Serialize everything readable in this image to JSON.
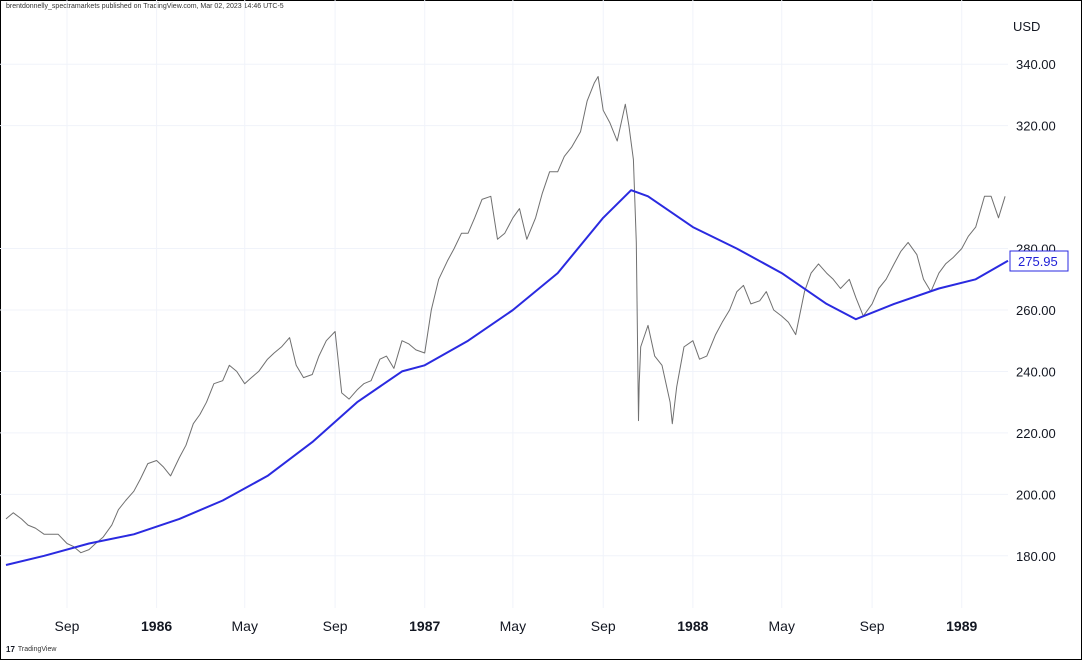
{
  "header": {
    "publish_note": "brentdonnelly_spectramarkets published on TradingView.com, Mar 02, 2023 14:46 UTC-5"
  },
  "footer": {
    "brand": "TradingView"
  },
  "colors": {
    "price_line": "#707070",
    "moving_average": "#2a2ae0",
    "last_value_border": "#2a2ae0",
    "last_value_text": "#1f1fd6",
    "grid": "#f0f3fa"
  },
  "chart_data": {
    "type": "line",
    "currency_label": "USD",
    "ylim": [
      163,
      357
    ],
    "xlim": [
      "1985-06-10",
      "1989-03-05"
    ],
    "y_ticks": [
      "180.00",
      "200.00",
      "220.00",
      "240.00",
      "260.00",
      "280.00",
      "320.00",
      "340.00"
    ],
    "x_ticks": [
      {
        "label": "Sep",
        "date": "1985-09-01",
        "bold": false
      },
      {
        "label": "1986",
        "date": "1986-01-01",
        "bold": true
      },
      {
        "label": "May",
        "date": "1986-05-01",
        "bold": false
      },
      {
        "label": "Sep",
        "date": "1986-09-01",
        "bold": false
      },
      {
        "label": "1987",
        "date": "1987-01-01",
        "bold": true
      },
      {
        "label": "May",
        "date": "1987-05-01",
        "bold": false
      },
      {
        "label": "Sep",
        "date": "1987-09-01",
        "bold": false
      },
      {
        "label": "1988",
        "date": "1988-01-01",
        "bold": true
      },
      {
        "label": "May",
        "date": "1988-05-01",
        "bold": false
      },
      {
        "label": "Sep",
        "date": "1988-09-01",
        "bold": false
      },
      {
        "label": "1989",
        "date": "1989-01-01",
        "bold": true
      }
    ],
    "last_value": "275.95",
    "series": [
      {
        "role": "price",
        "points": [
          [
            "1985-06-10",
            192
          ],
          [
            "1985-06-20",
            194
          ],
          [
            "1985-07-01",
            192
          ],
          [
            "1985-07-10",
            190
          ],
          [
            "1985-07-20",
            189
          ],
          [
            "1985-08-01",
            187
          ],
          [
            "1985-08-10",
            187
          ],
          [
            "1985-08-20",
            187
          ],
          [
            "1985-09-01",
            184
          ],
          [
            "1985-09-10",
            183
          ],
          [
            "1985-09-20",
            181
          ],
          [
            "1985-10-01",
            182
          ],
          [
            "1985-10-10",
            184
          ],
          [
            "1985-10-20",
            186
          ],
          [
            "1985-11-01",
            190
          ],
          [
            "1985-11-10",
            195
          ],
          [
            "1985-11-20",
            198
          ],
          [
            "1985-12-01",
            201
          ],
          [
            "1985-12-10",
            205
          ],
          [
            "1985-12-20",
            210
          ],
          [
            "1986-01-01",
            211
          ],
          [
            "1986-01-10",
            209
          ],
          [
            "1986-01-20",
            206
          ],
          [
            "1986-02-01",
            212
          ],
          [
            "1986-02-10",
            216
          ],
          [
            "1986-02-20",
            223
          ],
          [
            "1986-03-01",
            226
          ],
          [
            "1986-03-10",
            230
          ],
          [
            "1986-03-20",
            236
          ],
          [
            "1986-04-01",
            237
          ],
          [
            "1986-04-10",
            242
          ],
          [
            "1986-04-20",
            240
          ],
          [
            "1986-05-01",
            236
          ],
          [
            "1986-05-10",
            238
          ],
          [
            "1986-05-20",
            240
          ],
          [
            "1986-06-01",
            244
          ],
          [
            "1986-06-10",
            246
          ],
          [
            "1986-06-20",
            248
          ],
          [
            "1986-07-01",
            251
          ],
          [
            "1986-07-10",
            242
          ],
          [
            "1986-07-20",
            238
          ],
          [
            "1986-08-01",
            239
          ],
          [
            "1986-08-10",
            245
          ],
          [
            "1986-08-20",
            250
          ],
          [
            "1986-09-01",
            253
          ],
          [
            "1986-09-10",
            233
          ],
          [
            "1986-09-20",
            231
          ],
          [
            "1986-10-01",
            234
          ],
          [
            "1986-10-10",
            236
          ],
          [
            "1986-10-20",
            237
          ],
          [
            "1986-11-01",
            244
          ],
          [
            "1986-11-10",
            245
          ],
          [
            "1986-11-20",
            241
          ],
          [
            "1986-12-01",
            250
          ],
          [
            "1986-12-10",
            249
          ],
          [
            "1986-12-20",
            247
          ],
          [
            "1987-01-01",
            246
          ],
          [
            "1987-01-10",
            260
          ],
          [
            "1987-01-20",
            270
          ],
          [
            "1987-02-01",
            276
          ],
          [
            "1987-02-10",
            280
          ],
          [
            "1987-02-20",
            285
          ],
          [
            "1987-03-01",
            285
          ],
          [
            "1987-03-10",
            290
          ],
          [
            "1987-03-20",
            296
          ],
          [
            "1987-04-01",
            297
          ],
          [
            "1987-04-10",
            283
          ],
          [
            "1987-04-20",
            285
          ],
          [
            "1987-05-01",
            290
          ],
          [
            "1987-05-10",
            293
          ],
          [
            "1987-05-20",
            283
          ],
          [
            "1987-06-01",
            290
          ],
          [
            "1987-06-10",
            298
          ],
          [
            "1987-06-20",
            305
          ],
          [
            "1987-07-01",
            305
          ],
          [
            "1987-07-10",
            310
          ],
          [
            "1987-07-20",
            313
          ],
          [
            "1987-08-01",
            318
          ],
          [
            "1987-08-10",
            328
          ],
          [
            "1987-08-20",
            334
          ],
          [
            "1987-08-25",
            336
          ],
          [
            "1987-09-01",
            325
          ],
          [
            "1987-09-10",
            321
          ],
          [
            "1987-09-20",
            315
          ],
          [
            "1987-10-01",
            327
          ],
          [
            "1987-10-06",
            320
          ],
          [
            "1987-10-12",
            309
          ],
          [
            "1987-10-16",
            282
          ],
          [
            "1987-10-19",
            224
          ],
          [
            "1987-10-20",
            236
          ],
          [
            "1987-10-22",
            248
          ],
          [
            "1987-11-01",
            255
          ],
          [
            "1987-11-10",
            245
          ],
          [
            "1987-11-20",
            242
          ],
          [
            "1987-12-01",
            230
          ],
          [
            "1987-12-04",
            223
          ],
          [
            "1987-12-10",
            235
          ],
          [
            "1987-12-20",
            248
          ],
          [
            "1988-01-01",
            250
          ],
          [
            "1988-01-10",
            244
          ],
          [
            "1988-01-20",
            245
          ],
          [
            "1988-02-01",
            252
          ],
          [
            "1988-02-10",
            256
          ],
          [
            "1988-02-20",
            260
          ],
          [
            "1988-03-01",
            266
          ],
          [
            "1988-03-10",
            268
          ],
          [
            "1988-03-20",
            262
          ],
          [
            "1988-04-01",
            263
          ],
          [
            "1988-04-10",
            266
          ],
          [
            "1988-04-20",
            260
          ],
          [
            "1988-05-01",
            258
          ],
          [
            "1988-05-10",
            256
          ],
          [
            "1988-05-20",
            252
          ],
          [
            "1988-06-01",
            266
          ],
          [
            "1988-06-10",
            272
          ],
          [
            "1988-06-20",
            275
          ],
          [
            "1988-07-01",
            272
          ],
          [
            "1988-07-10",
            270
          ],
          [
            "1988-07-20",
            267
          ],
          [
            "1988-08-01",
            270
          ],
          [
            "1988-08-10",
            264
          ],
          [
            "1988-08-20",
            258
          ],
          [
            "1988-09-01",
            262
          ],
          [
            "1988-09-10",
            267
          ],
          [
            "1988-09-20",
            270
          ],
          [
            "1988-10-01",
            275
          ],
          [
            "1988-10-10",
            279
          ],
          [
            "1988-10-20",
            282
          ],
          [
            "1988-11-01",
            278
          ],
          [
            "1988-11-10",
            270
          ],
          [
            "1988-11-20",
            266
          ],
          [
            "1988-12-01",
            272
          ],
          [
            "1988-12-10",
            275
          ],
          [
            "1988-12-20",
            277
          ],
          [
            "1989-01-01",
            280
          ],
          [
            "1989-01-10",
            284
          ],
          [
            "1989-01-20",
            287
          ],
          [
            "1989-02-01",
            297
          ],
          [
            "1989-02-10",
            297
          ],
          [
            "1989-02-20",
            290
          ],
          [
            "1989-03-01",
            297
          ]
        ]
      },
      {
        "role": "moving_average",
        "points": [
          [
            "1985-06-10",
            177
          ],
          [
            "1985-08-01",
            180
          ],
          [
            "1985-10-01",
            184
          ],
          [
            "1985-12-01",
            187
          ],
          [
            "1986-02-01",
            192
          ],
          [
            "1986-04-01",
            198
          ],
          [
            "1986-06-01",
            206
          ],
          [
            "1986-08-01",
            217
          ],
          [
            "1986-10-01",
            230
          ],
          [
            "1986-12-01",
            240
          ],
          [
            "1987-01-01",
            242
          ],
          [
            "1987-03-01",
            250
          ],
          [
            "1987-05-01",
            260
          ],
          [
            "1987-07-01",
            272
          ],
          [
            "1987-09-01",
            290
          ],
          [
            "1987-10-09",
            299
          ],
          [
            "1987-11-01",
            297
          ],
          [
            "1988-01-01",
            287
          ],
          [
            "1988-03-01",
            280
          ],
          [
            "1988-05-01",
            272
          ],
          [
            "1988-07-01",
            262
          ],
          [
            "1988-08-10",
            257
          ],
          [
            "1988-10-01",
            262
          ],
          [
            "1988-12-01",
            267
          ],
          [
            "1989-01-20",
            270
          ],
          [
            "1989-03-05",
            276
          ]
        ]
      }
    ]
  }
}
